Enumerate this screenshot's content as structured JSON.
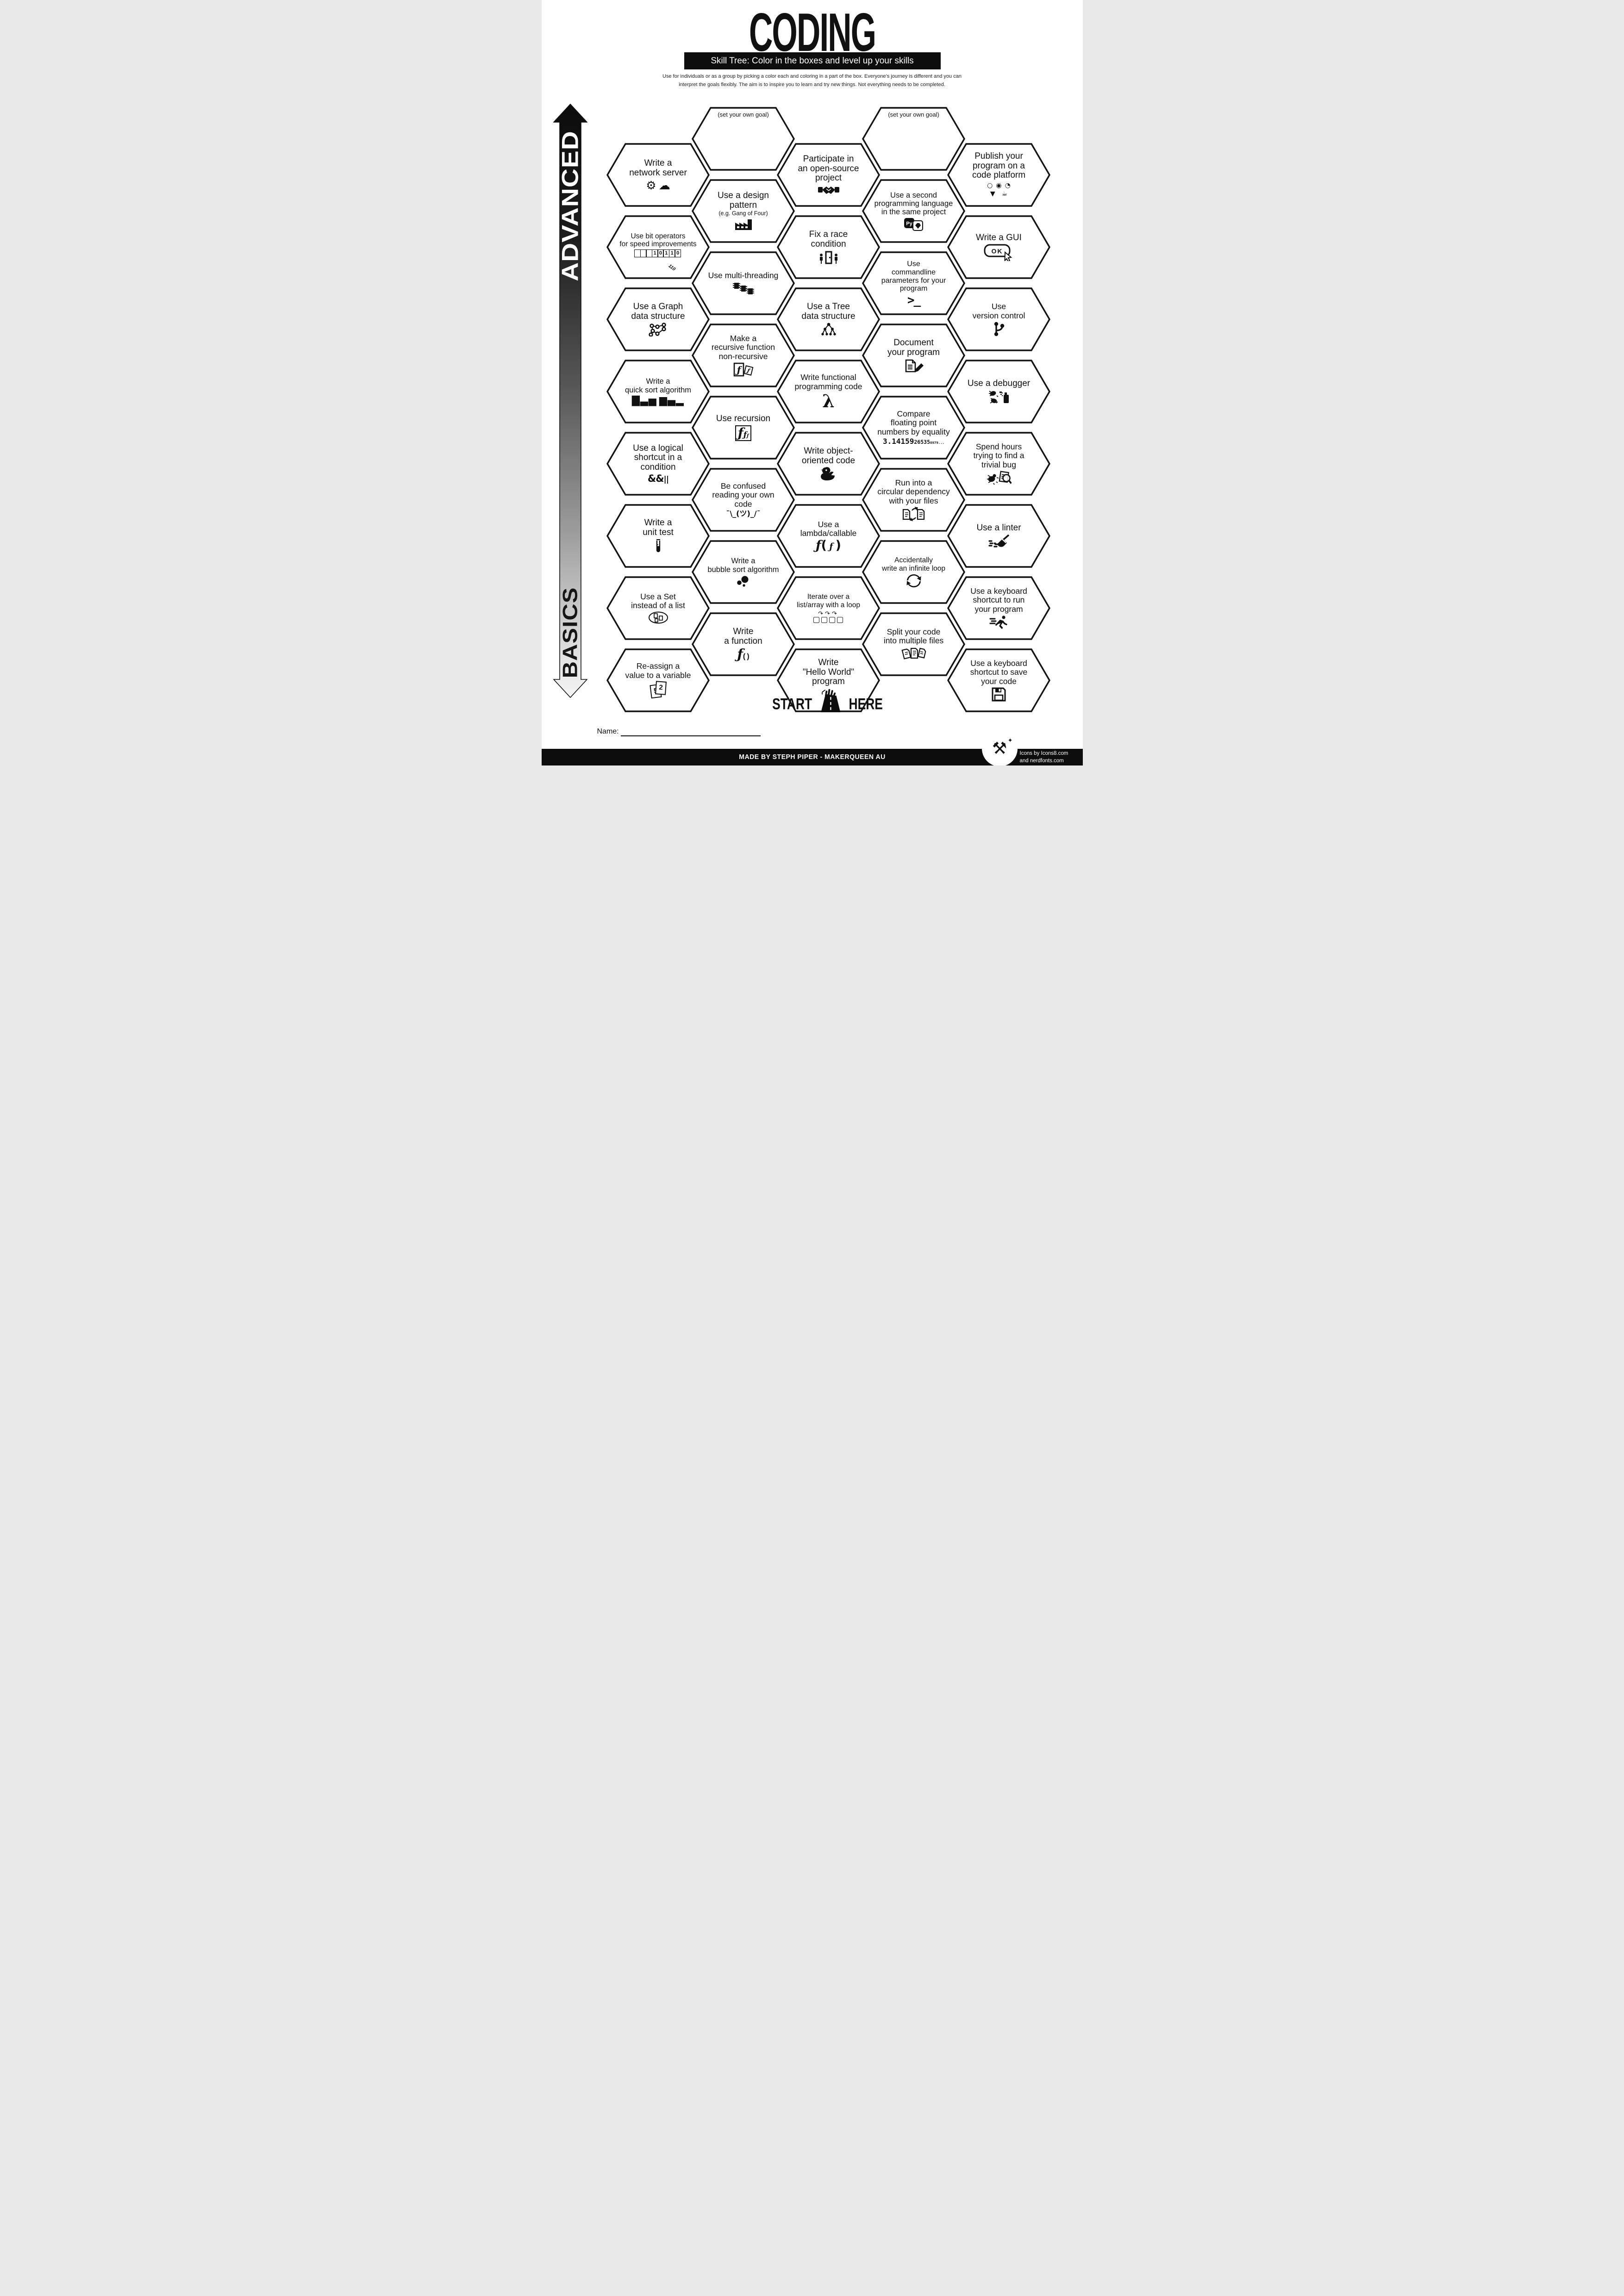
{
  "title": "CODING",
  "subtitle": "Skill Tree:  Color in the boxes and level up your skills",
  "instructions": {
    "line1": "Use for individuals or as a group by picking a color each and coloring in a part of the box.  Everyone’s journey is different and you can",
    "line2": "interpret the goals flexibly.  The aim is to inspire you to learn and try new things. Not everything needs to be completed."
  },
  "axis": {
    "top_label": "ADVANCED",
    "bottom_label": "BASICS"
  },
  "start_here": {
    "start": "START",
    "here": "HERE"
  },
  "name_label": "Name:",
  "footer": {
    "credit": "MADE BY STEPH PIPER  -  MAKERQUEEN AU",
    "icons_credit_line1": "Icons by Icons8.com",
    "icons_credit_line2": "and nerdfonts.com"
  },
  "colors": {
    "ink": "#111111",
    "bar": "#0d0d0d",
    "paper": "#ffffff"
  },
  "hexes": [
    {
      "id": "goal-left",
      "col": 2,
      "row": 0,
      "goal": true,
      "lines": [
        "(set your own goal)"
      ],
      "icon": ""
    },
    {
      "id": "goal-right",
      "col": 4,
      "row": 0,
      "goal": true,
      "lines": [
        "(set your own goal)"
      ],
      "icon": ""
    },
    {
      "id": "network-server",
      "col": 1,
      "row": 0,
      "lines": [
        "Write a",
        "network server"
      ],
      "icon": "plug-cloud-icon"
    },
    {
      "id": "open-source",
      "col": 3,
      "row": 0,
      "lines": [
        "Participate in",
        "an open-source",
        "project"
      ],
      "icon": "handshake-icon"
    },
    {
      "id": "publish-platform",
      "col": 5,
      "row": 0,
      "lines": [
        "Publish your",
        "program on a",
        "code platform"
      ],
      "icon": "platform-logos-icon"
    },
    {
      "id": "design-pattern",
      "col": 2,
      "row": 1,
      "lines": [
        "Use a design",
        "pattern"
      ],
      "note": "(e.g. Gang of Four)",
      "icon": "factory-icon"
    },
    {
      "id": "second-language",
      "col": 4,
      "row": 1,
      "lines": [
        "Use a second",
        "programming language",
        "in the same project"
      ],
      "icon": "python-ruby-icon"
    },
    {
      "id": "bit-operators",
      "col": 1,
      "row": 1,
      "lines": [
        "Use bit operators",
        "for speed improvements"
      ],
      "icon": "binary-register-icon",
      "icon_text": "10110"
    },
    {
      "id": "race-condition",
      "col": 3,
      "row": 1,
      "lines": [
        "Fix a race",
        "condition"
      ],
      "icon": "race-door-icon"
    },
    {
      "id": "write-gui",
      "col": 5,
      "row": 1,
      "lines": [
        "Write a GUI"
      ],
      "icon": "ok-button-icon",
      "icon_text": "OK"
    },
    {
      "id": "multi-threading",
      "col": 2,
      "row": 2,
      "lines": [
        "Use multi-threading"
      ],
      "icon": "chips-icon"
    },
    {
      "id": "commandline-params",
      "col": 4,
      "row": 2,
      "lines": [
        "Use",
        "commandline",
        "parameters for your",
        "program"
      ],
      "icon": "terminal-icon",
      "icon_text": ">_"
    },
    {
      "id": "graph-structure",
      "col": 1,
      "row": 2,
      "lines": [
        "Use a Graph",
        "data structure"
      ],
      "icon": "graph-icon"
    },
    {
      "id": "tree-structure",
      "col": 3,
      "row": 2,
      "lines": [
        "Use a Tree",
        "data structure"
      ],
      "icon": "tree-icon"
    },
    {
      "id": "version-control",
      "col": 5,
      "row": 2,
      "lines": [
        "Use",
        "version control"
      ],
      "icon": "git-branch-icon"
    },
    {
      "id": "recursive-to-non",
      "col": 2,
      "row": 3,
      "lines": [
        "Make a",
        "recursive function",
        "non-recursive"
      ],
      "icon": "function-docs-icon"
    },
    {
      "id": "document-program",
      "col": 4,
      "row": 3,
      "lines": [
        "Document",
        "your program"
      ],
      "icon": "doc-pencil-icon"
    },
    {
      "id": "quick-sort",
      "col": 1,
      "row": 3,
      "lines": [
        "Write a",
        "quick sort algorithm"
      ],
      "icon": "sort-bars-icon"
    },
    {
      "id": "functional-code",
      "col": 3,
      "row": 3,
      "lines": [
        "Write functional",
        "programming code"
      ],
      "icon": "lambda-icon",
      "icon_text": "λ"
    },
    {
      "id": "debugger",
      "col": 5,
      "row": 3,
      "lines": [
        "Use a debugger"
      ],
      "icon": "bug-spray-icon"
    },
    {
      "id": "recursion",
      "col": 2,
      "row": 4,
      "lines": [
        "Use recursion"
      ],
      "icon": "nested-function-icon",
      "icon_text": "ƒ"
    },
    {
      "id": "float-equality",
      "col": 4,
      "row": 4,
      "lines": [
        "Compare",
        "floating point",
        "numbers by equality"
      ],
      "icon": "pi-digits-icon",
      "icon_text": "3.14159265358979..."
    },
    {
      "id": "logical-shortcut",
      "col": 1,
      "row": 4,
      "lines": [
        "Use a logical",
        "shortcut in a",
        "condition"
      ],
      "icon": "and-or-icon",
      "icon_text": "&&||"
    },
    {
      "id": "oop-code",
      "col": 3,
      "row": 4,
      "lines": [
        "Write object-",
        "oriented code"
      ],
      "icon": "duck-icon"
    },
    {
      "id": "trivial-bug",
      "col": 5,
      "row": 4,
      "lines": [
        "Spend hours",
        "trying to find a",
        "trivial bug"
      ],
      "icon": "bug-magnifier-icon"
    },
    {
      "id": "confused-code",
      "col": 2,
      "row": 5,
      "lines": [
        "Be confused",
        "reading your own",
        "code"
      ],
      "icon": "shrug-icon",
      "icon_text": "¯\\_(ツ)_/¯"
    },
    {
      "id": "circular-dependency",
      "col": 4,
      "row": 5,
      "lines": [
        "Run into a",
        "circular dependency",
        "with your files"
      ],
      "icon": "circular-files-icon"
    },
    {
      "id": "unit-test",
      "col": 1,
      "row": 5,
      "lines": [
        "Write a",
        "unit test"
      ],
      "icon": "test-tube-icon"
    },
    {
      "id": "lambda-callable",
      "col": 3,
      "row": 5,
      "lines": [
        "Use a",
        "lambda/callable"
      ],
      "icon": "lambda-call-icon",
      "icon_text": "ƒ(ƒ)"
    },
    {
      "id": "linter",
      "col": 5,
      "row": 5,
      "lines": [
        "Use a linter"
      ],
      "icon": "broom-icon"
    },
    {
      "id": "bubble-sort",
      "col": 2,
      "row": 6,
      "lines": [
        "Write a",
        "bubble sort algorithm"
      ],
      "icon": "bubbles-icon"
    },
    {
      "id": "infinite-loop",
      "col": 4,
      "row": 6,
      "lines": [
        "Accidentally",
        "write an infinite loop"
      ],
      "icon": "cycle-arrows-icon"
    },
    {
      "id": "set-not-list",
      "col": 1,
      "row": 6,
      "lines": [
        "Use a Set",
        "instead of a list"
      ],
      "icon": "set-ellipse-icon"
    },
    {
      "id": "iterate-loop",
      "col": 3,
      "row": 6,
      "lines": [
        "Iterate over a",
        "list/array with a loop"
      ],
      "icon": "loop-boxes-icon"
    },
    {
      "id": "shortcut-run",
      "col": 5,
      "row": 6,
      "lines": [
        "Use a keyboard",
        "shortcut to run",
        "your program"
      ],
      "icon": "runner-icon"
    },
    {
      "id": "write-function",
      "col": 2,
      "row": 7,
      "lines": [
        "Write",
        "a function"
      ],
      "icon": "function-paren-icon",
      "icon_text": "ƒ()"
    },
    {
      "id": "split-files",
      "col": 4,
      "row": 7,
      "lines": [
        "Split your code",
        "into multiple files"
      ],
      "icon": "three-docs-icon"
    },
    {
      "id": "reassign-variable",
      "col": 1,
      "row": 7,
      "lines": [
        "Re-assign a",
        "value to a variable"
      ],
      "icon": "value-cards-icon",
      "icon_text": "5 2"
    },
    {
      "id": "hello-world",
      "col": 3,
      "row": 7,
      "lines": [
        "Write",
        "\"Hello World\"",
        "program"
      ],
      "icon": "wave-hand-icon"
    },
    {
      "id": "shortcut-save",
      "col": 5,
      "row": 7,
      "lines": [
        "Use a keyboard",
        "shortcut to save",
        "your code"
      ],
      "icon": "floppy-icon"
    }
  ]
}
